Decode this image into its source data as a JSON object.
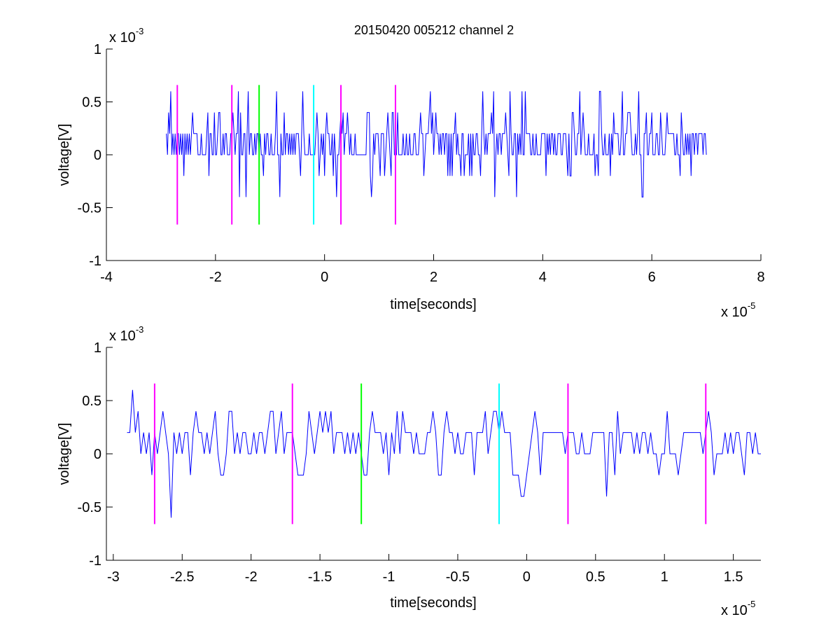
{
  "colors": {
    "signal": "#0000ff",
    "marker_magenta": "#ff00ff",
    "marker_green": "#00ff00",
    "marker_cyan": "#00ffff",
    "axis": "#000000"
  },
  "chart_data": [
    {
      "type": "line",
      "title": "20150420 005212 channel 2",
      "xlabel": "time[seconds]",
      "ylabel": "voltage[V]",
      "x_exponent_label": "x 10",
      "x_exponent": "-5",
      "y_exponent_label": "x 10",
      "y_exponent": "-3",
      "xlim": [
        -4,
        8
      ],
      "ylim": [
        -1,
        1
      ],
      "x_ticks": [
        -4,
        -2,
        0,
        2,
        4,
        6,
        8
      ],
      "x_tick_labels": [
        "-4",
        "-2",
        "0",
        "2",
        "4",
        "6",
        "8"
      ],
      "y_ticks": [
        -1,
        -0.5,
        0,
        0.5,
        1
      ],
      "y_tick_labels": [
        "-1",
        "-0.5",
        "0",
        "0.5",
        "1"
      ],
      "grid": false,
      "legend": "none",
      "series": [
        {
          "x_start": -2.9,
          "x_end": 7.0,
          "x_step": 0.02,
          "quantum": 0.2,
          "baseline": 0.2,
          "noise": "fast",
          "values": [
            0.2,
            0.0,
            0.4,
            0.2,
            0.6,
            0.0,
            0.2,
            0.0,
            0.2,
            0.0,
            0.2,
            0.2,
            0.0,
            0.2,
            0.0,
            0.2,
            -0.2,
            0.2,
            0.0,
            0.2
          ]
        }
      ],
      "markers": [
        {
          "x": -2.7,
          "color": "magenta",
          "y_range": [
            -0.66,
            0.66
          ]
        },
        {
          "x": -1.7,
          "color": "magenta",
          "y_range": [
            -0.66,
            0.66
          ]
        },
        {
          "x": -1.2,
          "color": "green",
          "y_range": [
            -0.66,
            0.66
          ]
        },
        {
          "x": -0.2,
          "color": "cyan",
          "y_range": [
            -0.66,
            0.66
          ]
        },
        {
          "x": 0.3,
          "color": "magenta",
          "y_range": [
            -0.66,
            0.66
          ]
        },
        {
          "x": 1.3,
          "color": "magenta",
          "y_range": [
            -0.66,
            0.66
          ]
        }
      ]
    },
    {
      "type": "line",
      "title": "",
      "xlabel": "time[seconds]",
      "ylabel": "voltage[V]",
      "x_exponent_label": "x 10",
      "x_exponent": "-5",
      "y_exponent_label": "x 10",
      "y_exponent": "-3",
      "xlim": [
        -3.05,
        1.7
      ],
      "ylim": [
        -1,
        1
      ],
      "x_ticks": [
        -3,
        -2.5,
        -2,
        -1.5,
        -1,
        -0.5,
        0,
        0.5,
        1,
        1.5
      ],
      "x_tick_labels": [
        "-3",
        "-2.5",
        "-2",
        "-1.5",
        "-1",
        "-0.5",
        "0",
        "0.5",
        "1",
        "1.5"
      ],
      "y_ticks": [
        -1,
        -0.5,
        0,
        0.5,
        1
      ],
      "y_tick_labels": [
        "-1",
        "-0.5",
        "0",
        "0.5",
        "1"
      ],
      "grid": false,
      "legend": "none",
      "series": [
        {
          "x_start": -2.9,
          "x_end": 1.7,
          "x_step": 0.02,
          "quantum": 0.2,
          "baseline": 0.2,
          "noise": "slow",
          "values": [
            0.2,
            0.2,
            0.6,
            0.2,
            0.4,
            0.0,
            0.2,
            0.0,
            0.2,
            -0.2,
            0.2,
            0.0,
            0.2,
            0.4,
            0.2,
            0.0,
            -0.6,
            0.2,
            0.0,
            0.2
          ]
        }
      ],
      "markers": [
        {
          "x": -2.7,
          "color": "magenta",
          "y_range": [
            -0.66,
            0.66
          ]
        },
        {
          "x": -1.7,
          "color": "magenta",
          "y_range": [
            -0.66,
            0.66
          ]
        },
        {
          "x": -1.2,
          "color": "green",
          "y_range": [
            -0.66,
            0.66
          ]
        },
        {
          "x": -0.2,
          "color": "cyan",
          "y_range": [
            -0.66,
            0.66
          ]
        },
        {
          "x": 0.3,
          "color": "magenta",
          "y_range": [
            -0.66,
            0.66
          ]
        },
        {
          "x": 1.3,
          "color": "magenta",
          "y_range": [
            -0.66,
            0.66
          ]
        }
      ]
    }
  ]
}
